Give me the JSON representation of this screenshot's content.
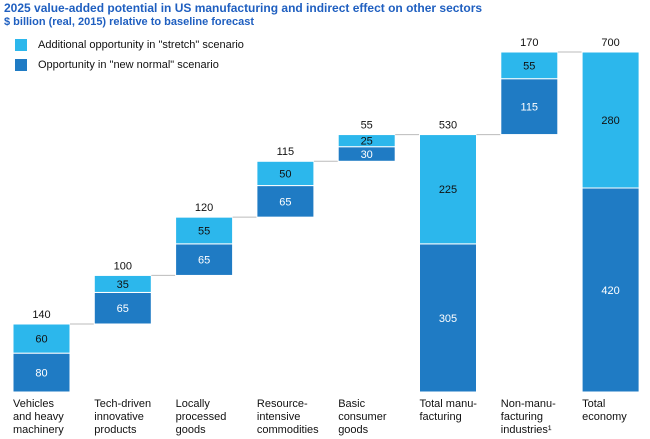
{
  "chart_data": {
    "type": "waterfall",
    "title": "2025 value-added potential in US manufacturing and indirect effect on other sectors",
    "subtitle": "$ billion (real, 2015) relative to baseline forecast",
    "categories": [
      [
        "Vehicles",
        "and heavy",
        "machinery"
      ],
      [
        "Tech-driven",
        "innovative",
        "products"
      ],
      [
        "Locally",
        "processed",
        "goods"
      ],
      [
        "Resource-",
        "intensive",
        "commodities"
      ],
      [
        "Basic",
        "consumer",
        "goods"
      ],
      [
        "Total manu-",
        "facturing"
      ],
      [
        "Non-manu-",
        "facturing",
        "industries¹"
      ],
      [
        "Total",
        "economy"
      ]
    ],
    "series": [
      {
        "name": "Opportunity in \"new normal\" scenario",
        "color": "#1f7bc4",
        "values": [
          80,
          65,
          65,
          65,
          30,
          305,
          115,
          420
        ]
      },
      {
        "name": "Additional opportunity in \"stretch\" scenario",
        "color": "#2cb7ec",
        "values": [
          60,
          35,
          55,
          50,
          25,
          225,
          55,
          280
        ]
      }
    ],
    "totals": [
      140,
      100,
      120,
      115,
      55,
      530,
      170,
      700
    ]
  }
}
